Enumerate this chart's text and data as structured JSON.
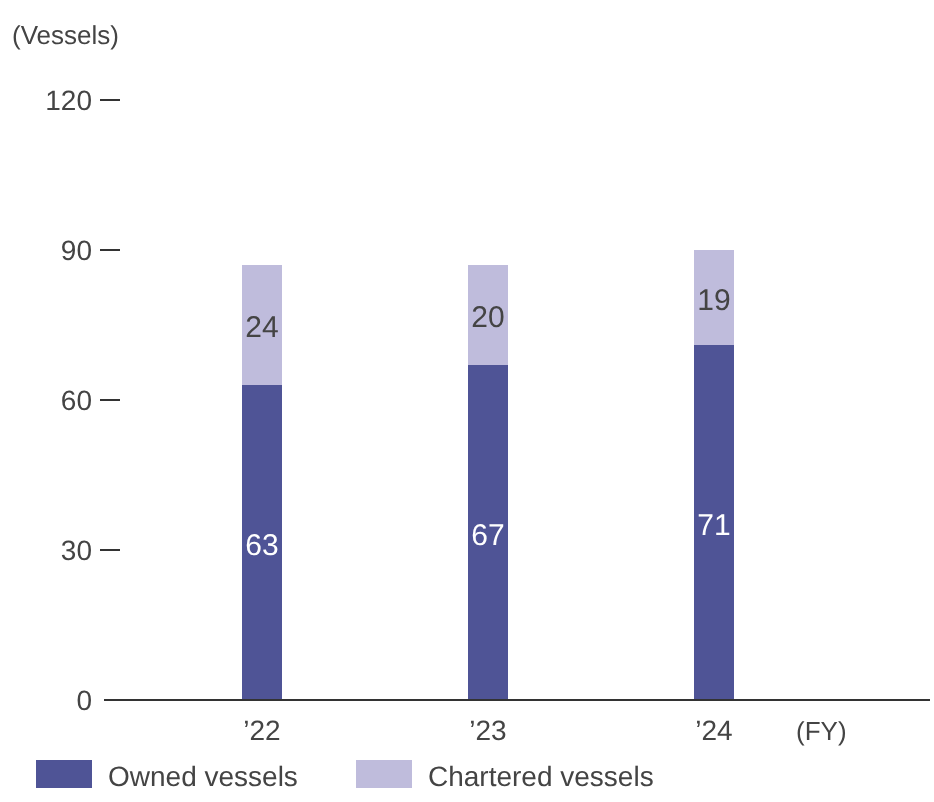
{
  "chart_data": {
    "type": "bar",
    "stacked": true,
    "ylabel": "(Vessels)",
    "xlabel": "(FY)",
    "categories": [
      "’22",
      "’23",
      "’24"
    ],
    "series": [
      {
        "name": "Owned vessels",
        "color": "#4f5496",
        "values": [
          63,
          67,
          71
        ]
      },
      {
        "name": "Chartered vessels",
        "color": "#bfbcdc",
        "values": [
          24,
          20,
          19
        ]
      }
    ],
    "ylim": [
      0,
      120
    ],
    "yticks": [
      0,
      30,
      60,
      90,
      120
    ],
    "data_labels": true,
    "legend": "bottom left",
    "grid": false
  }
}
